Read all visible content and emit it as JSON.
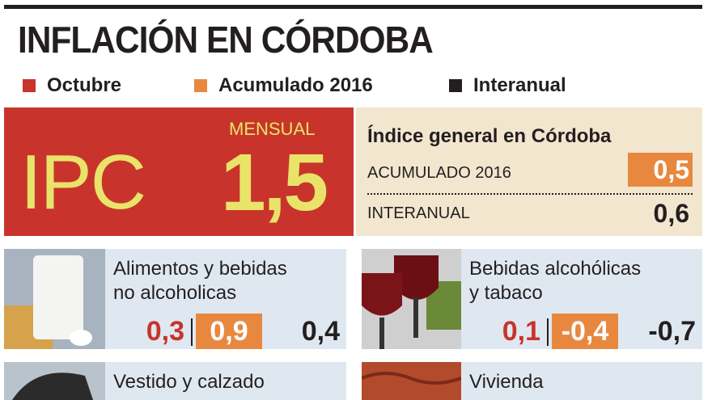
{
  "header": {
    "title": "INFLACIÓN EN CÓRDOBA"
  },
  "legend": [
    {
      "label": "Octubre",
      "color": "#c8342b"
    },
    {
      "label": "Acumulado 2016",
      "color": "#e8883f"
    },
    {
      "label": "Interanual",
      "color": "#231f20"
    }
  ],
  "ipc": {
    "label": "IPC",
    "sublabel": "MENSUAL",
    "value": "1,5"
  },
  "general": {
    "title": "Índice general en Córdoba",
    "rows": [
      {
        "label": "ACUMULADO 2016",
        "value": "0,5"
      },
      {
        "label": "INTERANUAL",
        "value": "0,6"
      }
    ]
  },
  "cards": [
    {
      "lines": [
        "Alimentos y bebidas",
        "no alcoholicas"
      ],
      "values": [
        "0,3",
        "0,9",
        "0,4"
      ]
    },
    {
      "lines": [
        "Bebidas alcohólicas",
        "y tabaco"
      ],
      "values": [
        "0,1",
        "-0,4",
        "-0,7"
      ]
    },
    {
      "lines": [
        "Vestido y calzado"
      ],
      "values": []
    },
    {
      "lines": [
        "Vivienda"
      ],
      "values": []
    }
  ]
}
